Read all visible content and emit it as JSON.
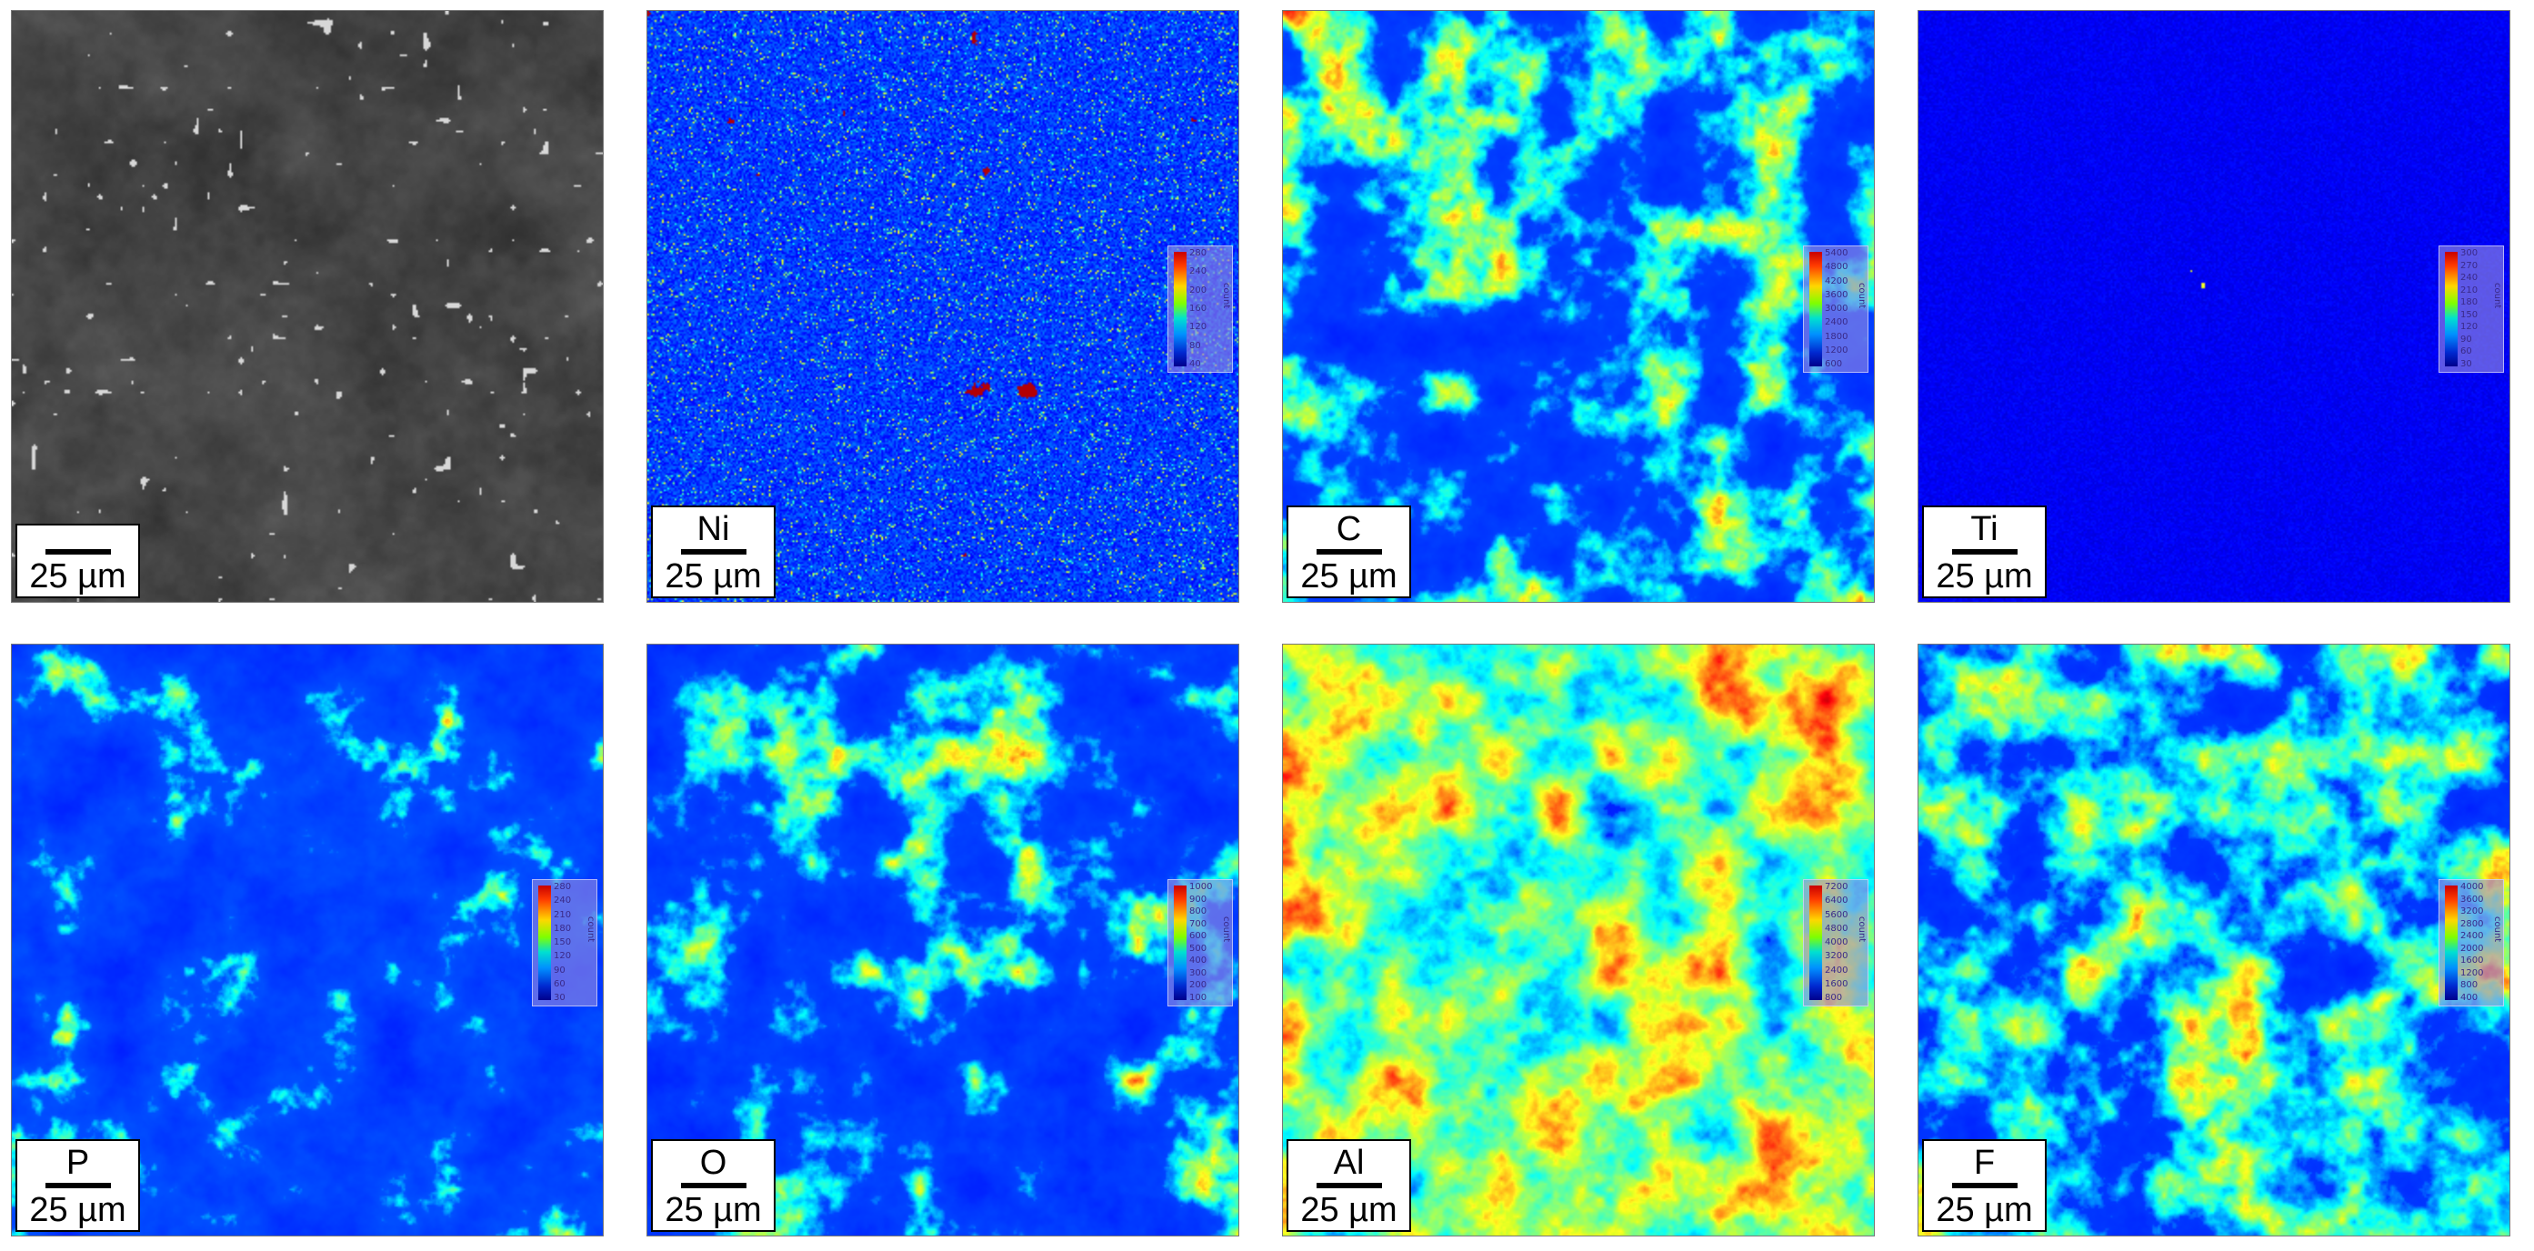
{
  "figure": {
    "panels": [
      {
        "id": "sem",
        "element": "",
        "scale": "25 µm",
        "style": "gray",
        "density": 0.0,
        "colorbar": null
      },
      {
        "id": "ni",
        "element": "Ni",
        "scale": "25 µm",
        "style": "speckle",
        "density": 0.25,
        "colorbar": {
          "ticks": [
            "280",
            "240",
            "200",
            "160",
            "120",
            "80",
            "40"
          ],
          "unit": "count"
        }
      },
      {
        "id": "c",
        "element": "C",
        "scale": "25 µm",
        "style": "blob",
        "density": 0.45,
        "colorbar": {
          "ticks": [
            "5400",
            "4800",
            "4200",
            "3600",
            "3000",
            "2400",
            "1800",
            "1200",
            "600"
          ],
          "unit": "count"
        }
      },
      {
        "id": "ti",
        "element": "Ti",
        "scale": "25 µm",
        "style": "sparse",
        "density": 0.12,
        "colorbar": {
          "ticks": [
            "300",
            "270",
            "240",
            "210",
            "180",
            "150",
            "120",
            "90",
            "60",
            "30"
          ],
          "unit": "count"
        }
      },
      {
        "id": "p",
        "element": "P",
        "scale": "25 µm",
        "style": "blob",
        "density": 0.3,
        "colorbar": {
          "ticks": [
            "280",
            "240",
            "210",
            "180",
            "150",
            "120",
            "90",
            "60",
            "30"
          ],
          "unit": "count"
        }
      },
      {
        "id": "o",
        "element": "O",
        "scale": "25 µm",
        "style": "blob",
        "density": 0.42,
        "colorbar": {
          "ticks": [
            "1000",
            "900",
            "800",
            "700",
            "600",
            "500",
            "400",
            "300",
            "200",
            "100"
          ],
          "unit": "count"
        }
      },
      {
        "id": "al",
        "element": "Al",
        "scale": "25 µm",
        "style": "blob",
        "density": 0.78,
        "colorbar": {
          "ticks": [
            "7200",
            "6400",
            "5600",
            "4800",
            "4000",
            "3200",
            "2400",
            "1600",
            "800"
          ],
          "unit": "count"
        }
      },
      {
        "id": "f",
        "element": "F",
        "scale": "25 µm",
        "style": "blob",
        "density": 0.55,
        "colorbar": {
          "ticks": [
            "4000",
            "3600",
            "3200",
            "2800",
            "2400",
            "2000",
            "1600",
            "1200",
            "800",
            "400"
          ],
          "unit": "count"
        }
      }
    ]
  }
}
